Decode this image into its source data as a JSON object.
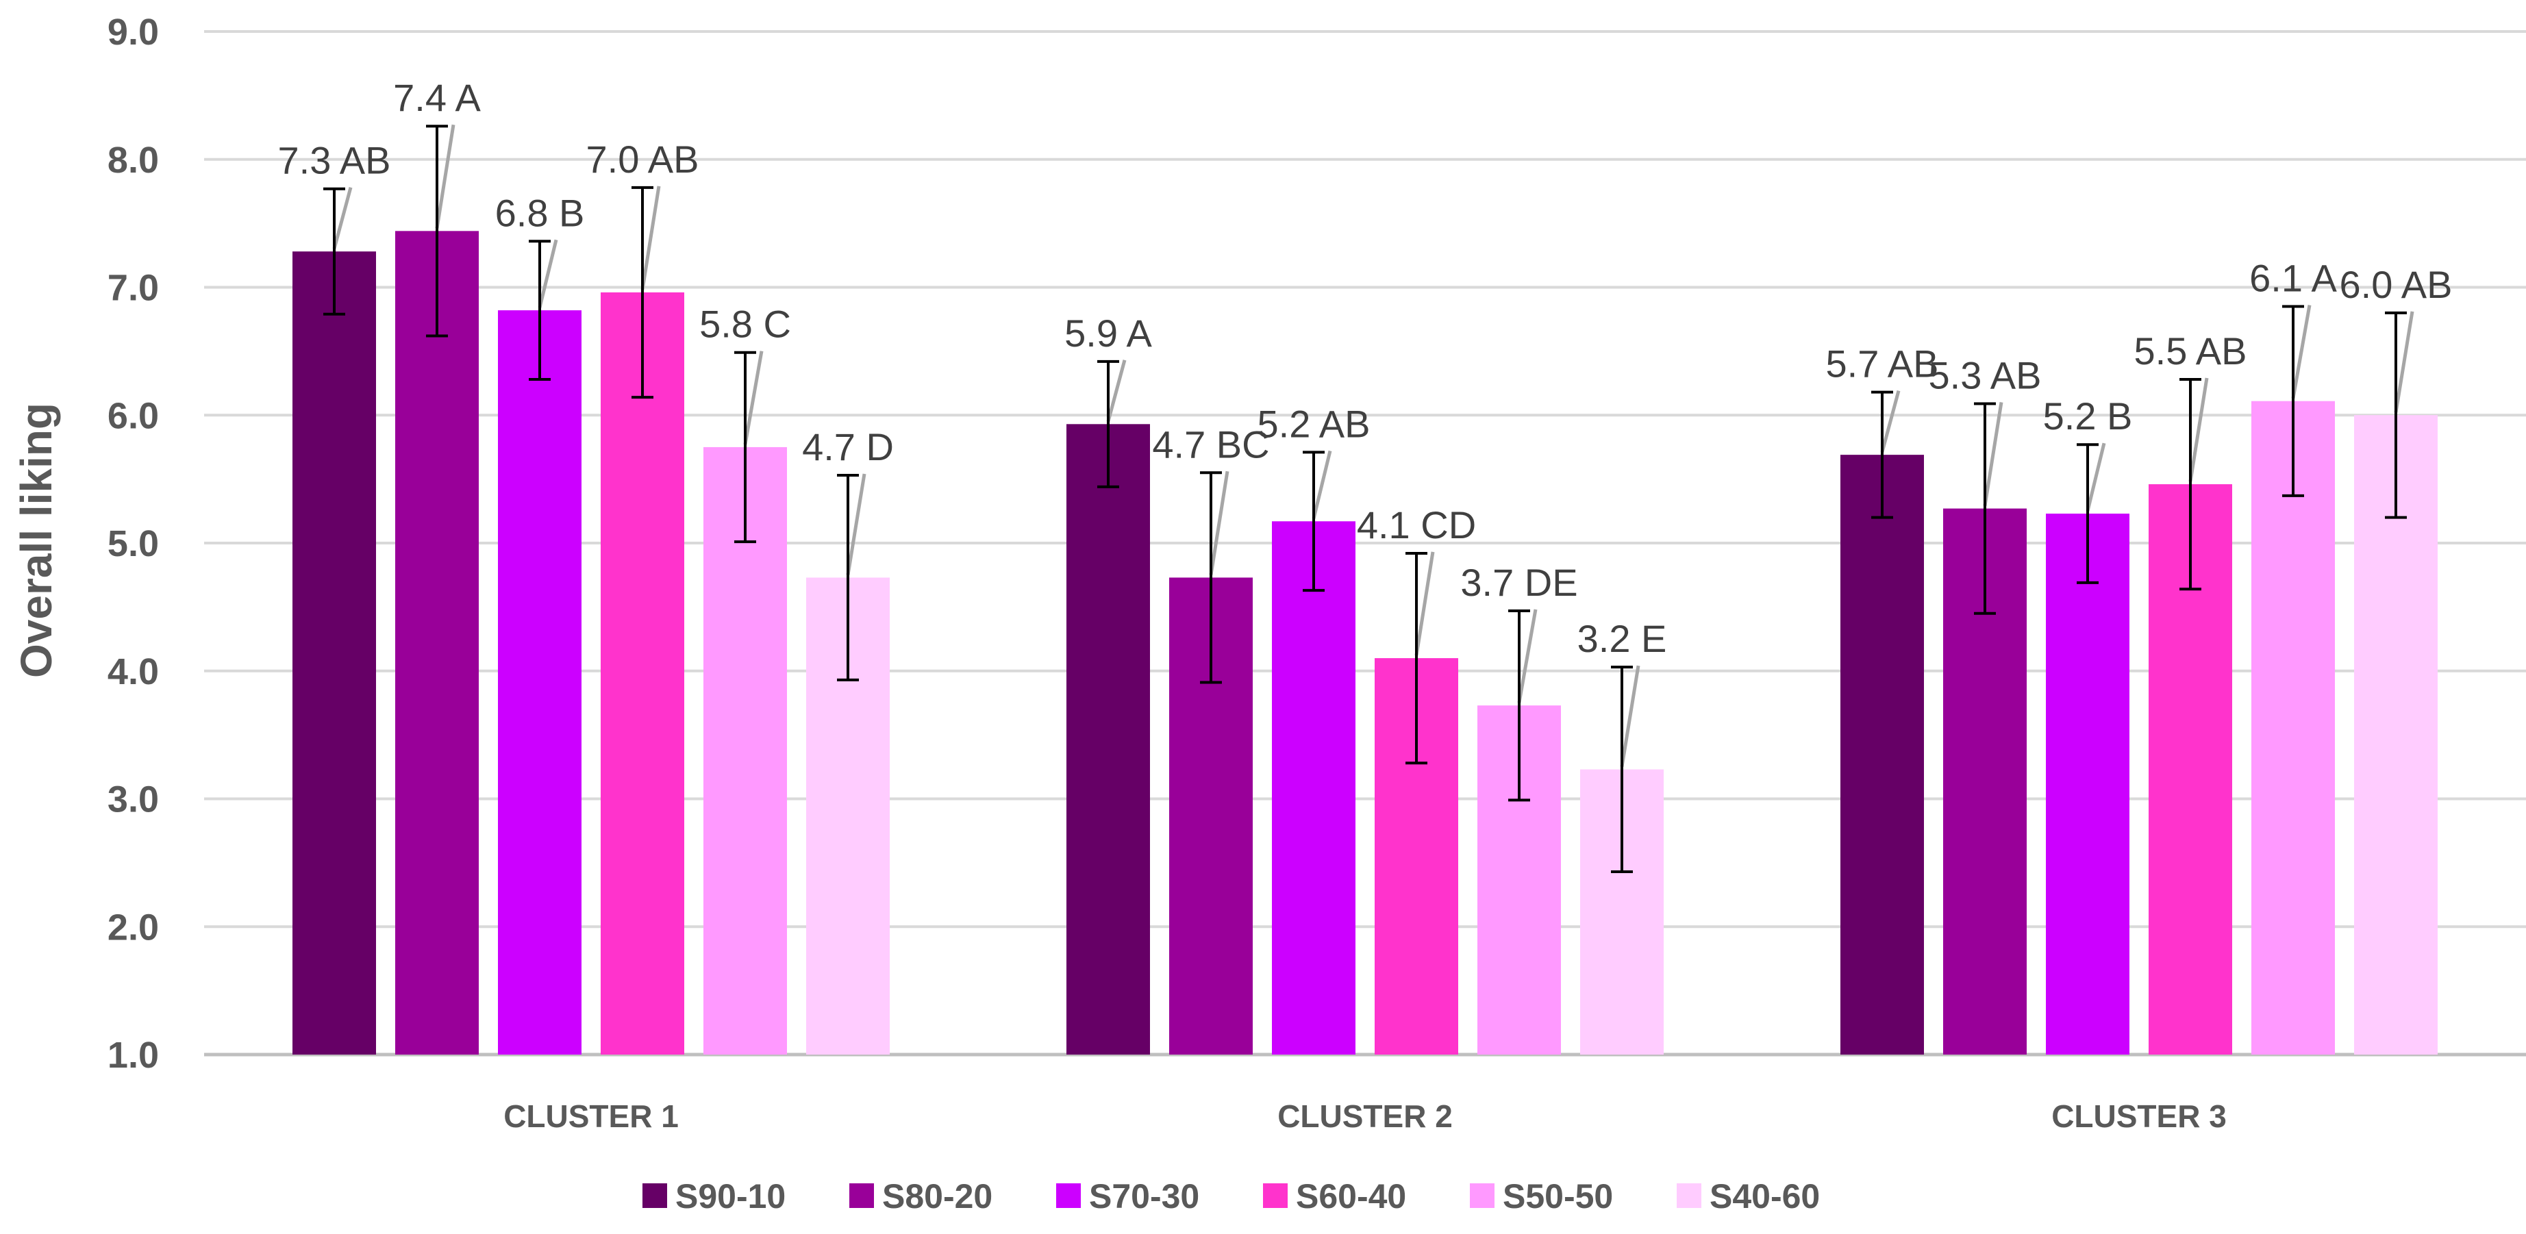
{
  "chart_data": {
    "type": "bar",
    "title": "",
    "xlabel": "",
    "ylabel": "Overall liking",
    "ylim": [
      1.0,
      9.0
    ],
    "yticks": [
      "1.0",
      "2.0",
      "3.0",
      "4.0",
      "5.0",
      "6.0",
      "7.0",
      "8.0",
      "9.0"
    ],
    "grid": true,
    "legend_position": "bottom",
    "categories": [
      "CLUSTER 1",
      "CLUSTER 2",
      "CLUSTER 3"
    ],
    "series": [
      {
        "name": "S90-10",
        "color": "#660066",
        "values": [
          7.28,
          5.93,
          5.69
        ],
        "errors": [
          0.49,
          0.49,
          0.49
        ],
        "labels": [
          "7.3 AB",
          "5.9 A",
          "5.7 AB"
        ]
      },
      {
        "name": "S80-20",
        "color": "#990099",
        "values": [
          7.44,
          4.73,
          5.27
        ],
        "errors": [
          0.82,
          0.82,
          0.82
        ],
        "labels": [
          "7.4 A",
          "4.7 BC",
          "5.3 AB"
        ]
      },
      {
        "name": "S70-30",
        "color": "#CC00FF",
        "values": [
          6.82,
          5.17,
          5.23
        ],
        "errors": [
          0.54,
          0.54,
          0.54
        ],
        "labels": [
          "6.8 B",
          "5.2 AB",
          "5.2 B"
        ]
      },
      {
        "name": "S60-40",
        "color": "#FF33CC",
        "values": [
          6.96,
          4.1,
          5.46
        ],
        "errors": [
          0.82,
          0.82,
          0.82
        ],
        "labels": [
          "7.0 AB",
          "4.1 CD",
          "5.5 AB"
        ]
      },
      {
        "name": "S50-50",
        "color": "#FF99FF",
        "values": [
          5.75,
          3.73,
          6.11
        ],
        "errors": [
          0.74,
          0.74,
          0.74
        ],
        "labels": [
          "5.8 C",
          "3.7 DE",
          "6.1 A"
        ]
      },
      {
        "name": "S40-60",
        "color": "#FFCCFF",
        "values": [
          4.73,
          3.23,
          6.0
        ],
        "errors": [
          0.8,
          0.8,
          0.8
        ],
        "labels": [
          "4.7 D",
          "3.2 E",
          "6.0 AB"
        ]
      }
    ]
  }
}
